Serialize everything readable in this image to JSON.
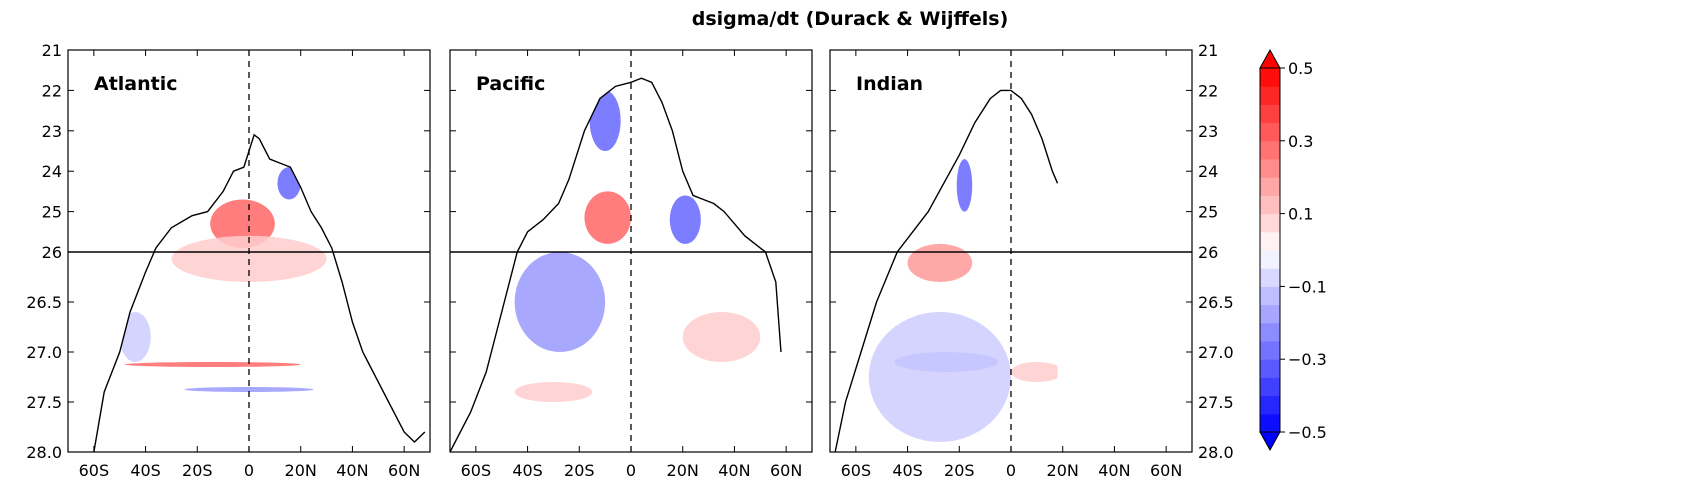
{
  "title": "dsigma/dt (Durack & Wijffels)",
  "chart_data": {
    "type": "heatmap",
    "title": "dsigma/dt (Durack & Wijffels)",
    "xlabel": "",
    "ylabel": "",
    "x_ticks": [
      {
        "value": -60,
        "label": "60S"
      },
      {
        "value": -40,
        "label": "40S"
      },
      {
        "value": -20,
        "label": "20S"
      },
      {
        "value": 0,
        "label": "0"
      },
      {
        "value": 20,
        "label": "20N"
      },
      {
        "value": 40,
        "label": "40N"
      },
      {
        "value": 60,
        "label": "60N"
      }
    ],
    "xlim": [
      -70,
      70
    ],
    "y_upper_ticks": [
      "21",
      "22",
      "23",
      "24",
      "25",
      "26"
    ],
    "y_upper_lim": [
      21,
      26
    ],
    "y_lower_ticks": [
      "26.5",
      "27.0",
      "27.5",
      "28.0"
    ],
    "y_lower_lim": [
      26,
      28
    ],
    "reference_lines": {
      "vertical_x": 0,
      "horizontal_density": 26
    },
    "colorbar": {
      "levels": [
        -0.5,
        -0.45,
        -0.4,
        -0.35,
        -0.3,
        -0.25,
        -0.2,
        -0.15,
        -0.1,
        -0.05,
        0,
        0.05,
        0.1,
        0.15,
        0.2,
        0.25,
        0.3,
        0.35,
        0.4,
        0.45,
        0.5
      ],
      "tick_labels": [
        "0.5",
        "0.3",
        "0.1",
        "−0.1",
        "−0.3",
        "−0.5"
      ],
      "tick_values": [
        0.5,
        0.3,
        0.1,
        -0.1,
        -0.3,
        -0.5
      ],
      "extend": "both",
      "colormap": "bwr"
    },
    "panels": [
      {
        "name": "Atlantic",
        "outcrop": [
          [
            -60,
            28.0
          ],
          [
            -56,
            27.4
          ],
          [
            -50,
            27.0
          ],
          [
            -46,
            26.6
          ],
          [
            -40,
            26.2
          ],
          [
            -36,
            25.9
          ],
          [
            -30,
            25.4
          ],
          [
            -22,
            25.1
          ],
          [
            -16,
            25.0
          ],
          [
            -10,
            24.5
          ],
          [
            -6,
            24.0
          ],
          [
            -2,
            23.9
          ],
          [
            2,
            23.1
          ],
          [
            4,
            23.2
          ],
          [
            8,
            23.7
          ],
          [
            12,
            23.8
          ],
          [
            16,
            23.9
          ],
          [
            20,
            24.4
          ],
          [
            24,
            25.0
          ],
          [
            28,
            25.4
          ],
          [
            32,
            25.9
          ],
          [
            36,
            26.3
          ],
          [
            40,
            26.7
          ],
          [
            44,
            27.0
          ],
          [
            48,
            27.2
          ],
          [
            52,
            27.4
          ],
          [
            56,
            27.6
          ],
          [
            60,
            27.8
          ],
          [
            64,
            27.9
          ],
          [
            68,
            27.8
          ]
        ],
        "features": [
          {
            "sign": "positive",
            "value": 0.3,
            "x0": -15,
            "x1": 10,
            "y0": 24.7,
            "y1": 25.9
          },
          {
            "sign": "positive",
            "value": 0.1,
            "x0": -30,
            "x1": 30,
            "y0": 25.6,
            "y1": 26.3
          },
          {
            "sign": "negative",
            "value": -0.3,
            "x0": 11,
            "x1": 20,
            "y0": 23.9,
            "y1": 24.7
          },
          {
            "sign": "negative",
            "value": -0.1,
            "x0": -50,
            "x1": -38,
            "y0": 26.6,
            "y1": 27.1
          },
          {
            "sign": "positive",
            "value": 0.3,
            "x0": -48,
            "x1": 20,
            "y0": 27.1,
            "y1": 27.15
          },
          {
            "sign": "negative",
            "value": -0.2,
            "x0": -25,
            "x1": 25,
            "y0": 27.35,
            "y1": 27.4
          }
        ]
      },
      {
        "name": "Pacific",
        "outcrop": [
          [
            -70,
            28.0
          ],
          [
            -62,
            27.6
          ],
          [
            -56,
            27.2
          ],
          [
            -50,
            26.6
          ],
          [
            -44,
            26.0
          ],
          [
            -40,
            25.5
          ],
          [
            -34,
            25.2
          ],
          [
            -28,
            24.8
          ],
          [
            -24,
            24.2
          ],
          [
            -18,
            23.0
          ],
          [
            -12,
            22.2
          ],
          [
            -6,
            21.9
          ],
          [
            0,
            21.8
          ],
          [
            4,
            21.7
          ],
          [
            8,
            21.8
          ],
          [
            12,
            22.3
          ],
          [
            16,
            23.0
          ],
          [
            20,
            24.0
          ],
          [
            24,
            24.6
          ],
          [
            28,
            24.7
          ],
          [
            32,
            24.8
          ],
          [
            36,
            25.0
          ],
          [
            40,
            25.3
          ],
          [
            44,
            25.6
          ],
          [
            48,
            25.8
          ],
          [
            52,
            26.0
          ],
          [
            56,
            26.3
          ],
          [
            58,
            27.0
          ]
        ],
        "features": [
          {
            "sign": "negative",
            "value": -0.3,
            "x0": -16,
            "x1": -4,
            "y0": 22.0,
            "y1": 23.5
          },
          {
            "sign": "negative",
            "value": -0.3,
            "x0": 15,
            "x1": 27,
            "y0": 24.6,
            "y1": 25.8
          },
          {
            "sign": "positive",
            "value": 0.3,
            "x0": -18,
            "x1": 0,
            "y0": 24.5,
            "y1": 25.8
          },
          {
            "sign": "negative",
            "value": -0.2,
            "x0": -45,
            "x1": -10,
            "y0": 26.0,
            "y1": 27.0
          },
          {
            "sign": "positive",
            "value": 0.1,
            "x0": 20,
            "x1": 50,
            "y0": 26.6,
            "y1": 27.1
          },
          {
            "sign": "positive",
            "value": 0.1,
            "x0": -45,
            "x1": -15,
            "y0": 27.3,
            "y1": 27.5
          }
        ]
      },
      {
        "name": "Indian",
        "outcrop": [
          [
            -68,
            28.0
          ],
          [
            -64,
            27.5
          ],
          [
            -58,
            27.0
          ],
          [
            -52,
            26.5
          ],
          [
            -44,
            26.0
          ],
          [
            -38,
            25.5
          ],
          [
            -32,
            25.0
          ],
          [
            -26,
            24.3
          ],
          [
            -20,
            23.6
          ],
          [
            -14,
            22.8
          ],
          [
            -8,
            22.2
          ],
          [
            -4,
            22.0
          ],
          [
            0,
            22.0
          ],
          [
            4,
            22.2
          ],
          [
            8,
            22.6
          ],
          [
            12,
            23.2
          ],
          [
            16,
            24.0
          ],
          [
            18,
            24.3
          ]
        ],
        "features": [
          {
            "sign": "negative",
            "value": -0.3,
            "x0": -21,
            "x1": -15,
            "y0": 23.7,
            "y1": 25.0
          },
          {
            "sign": "positive",
            "value": 0.2,
            "x0": -40,
            "x1": -15,
            "y0": 25.8,
            "y1": 26.3
          },
          {
            "sign": "negative",
            "value": -0.2,
            "x0": -45,
            "x1": -5,
            "y0": 27.0,
            "y1": 27.2
          },
          {
            "sign": "positive",
            "value": 0.1,
            "x0": 0,
            "x1": 20,
            "y0": 27.1,
            "y1": 27.3
          },
          {
            "sign": "negative",
            "value": -0.1,
            "x0": -55,
            "x1": 0,
            "y0": 26.6,
            "y1": 27.9
          }
        ]
      }
    ]
  }
}
